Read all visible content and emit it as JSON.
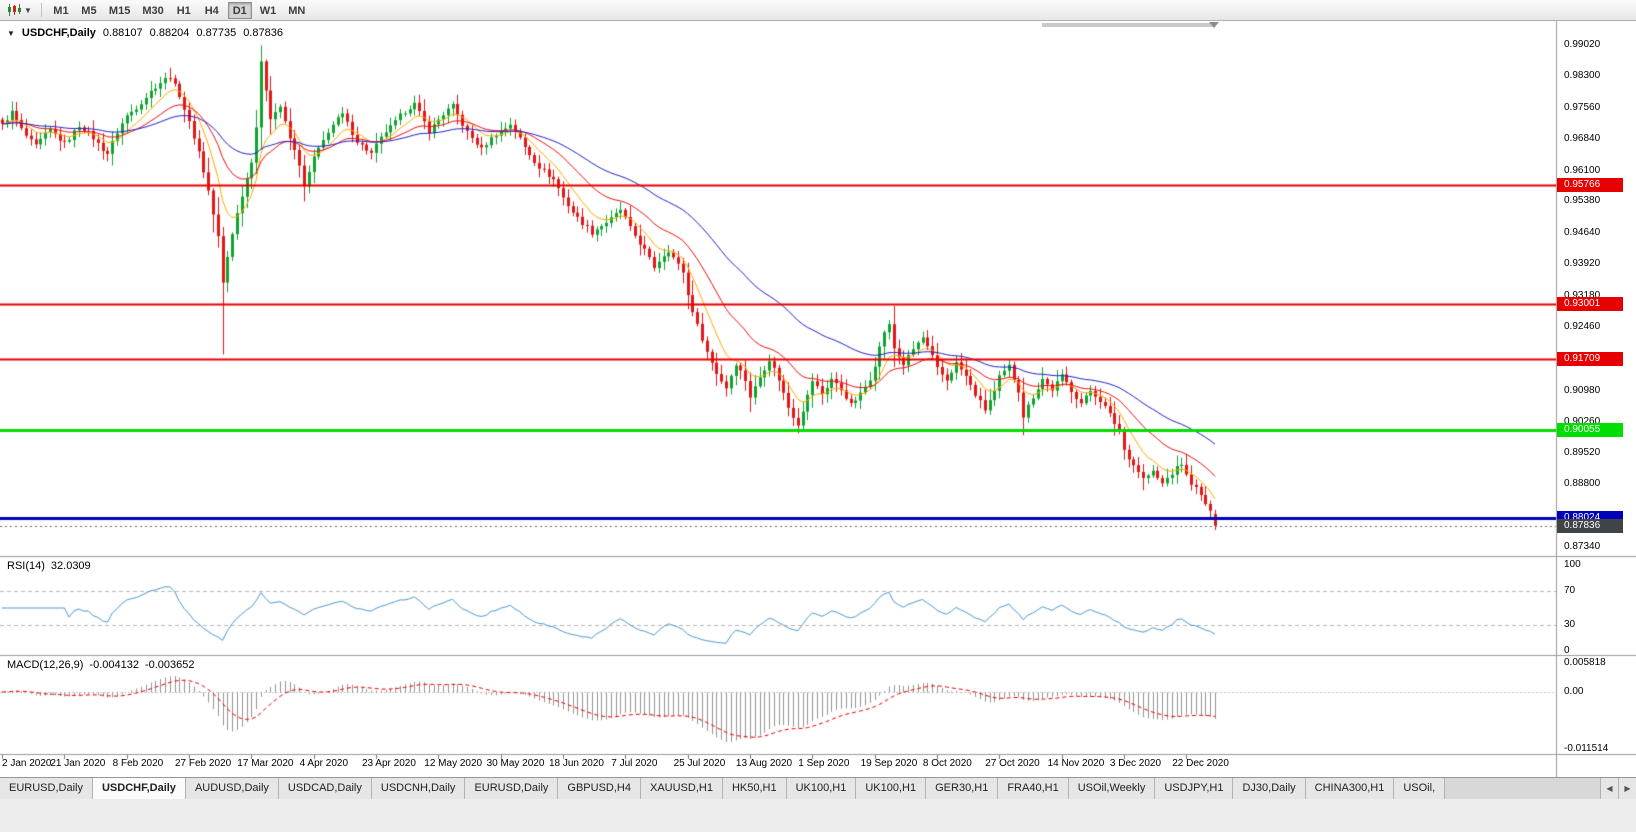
{
  "toolbar": {
    "chart_icon": "candlestick-chart-icon",
    "timeframes": [
      {
        "label": "M1",
        "active": false
      },
      {
        "label": "M5",
        "active": false
      },
      {
        "label": "M15",
        "active": false
      },
      {
        "label": "M30",
        "active": false
      },
      {
        "label": "H1",
        "active": false
      },
      {
        "label": "H4",
        "active": false
      },
      {
        "label": "D1",
        "active": true
      },
      {
        "label": "W1",
        "active": false
      },
      {
        "label": "MN",
        "active": false
      }
    ]
  },
  "chart_data": {
    "type": "candlestick",
    "title": "USDCHF,Daily",
    "ohlc": {
      "open": 0.88107,
      "high": 0.88204,
      "low": 0.87735,
      "close": 0.87836
    },
    "y_axis": {
      "min": 0.8734,
      "max": 0.9902,
      "ticks": [
        "0.99020",
        "0.98300",
        "0.97560",
        "0.96840",
        "0.96100",
        "0.95380",
        "0.94640",
        "0.93920",
        "0.93180",
        "0.92460",
        "0.91720",
        "0.90980",
        "0.90260",
        "0.89520",
        "0.88800",
        "0.88060",
        "0.87340"
      ]
    },
    "x_axis": {
      "total_days": 254,
      "days_per_label": 13,
      "labels": [
        "2 Jan 2020",
        "21 Jan 2020",
        "8 Feb 2020",
        "27 Feb 2020",
        "17 Mar 2020",
        "4 Apr 2020",
        "23 Apr 2020",
        "12 May 2020",
        "30 May 2020",
        "18 Jun 2020",
        "7 Jul 2020",
        "25 Jul 2020",
        "13 Aug 2020",
        "1 Sep 2020",
        "19 Sep 2020",
        "8 Oct 2020",
        "27 Oct 2020",
        "14 Nov 2020",
        "3 Dec 2020",
        "22 Dec 2020"
      ]
    },
    "price_path_anchors": [
      [
        0,
        0.9715
      ],
      [
        2,
        0.9742
      ],
      [
        4,
        0.9706
      ],
      [
        7,
        0.9668
      ],
      [
        10,
        0.9701
      ],
      [
        13,
        0.9676
      ],
      [
        16,
        0.9712
      ],
      [
        19,
        0.9686
      ],
      [
        22,
        0.9652
      ],
      [
        24,
        0.9696
      ],
      [
        26,
        0.9736
      ],
      [
        29,
        0.9772
      ],
      [
        32,
        0.9802
      ],
      [
        35,
        0.9832
      ],
      [
        37,
        0.9788
      ],
      [
        39,
        0.9718
      ],
      [
        41,
        0.9652
      ],
      [
        43,
        0.9566
      ],
      [
        45,
        0.9456
      ],
      [
        46,
        0.9346
      ],
      [
        47,
        0.9406
      ],
      [
        48,
        0.9462
      ],
      [
        50,
        0.9556
      ],
      [
        52,
        0.9636
      ],
      [
        53,
        0.9712
      ],
      [
        54,
        0.9856
      ],
      [
        55,
        0.9796
      ],
      [
        56,
        0.9732
      ],
      [
        58,
        0.9762
      ],
      [
        60,
        0.9686
      ],
      [
        62,
        0.9622
      ],
      [
        63,
        0.9566
      ],
      [
        65,
        0.9642
      ],
      [
        68,
        0.9702
      ],
      [
        71,
        0.9738
      ],
      [
        74,
        0.9682
      ],
      [
        77,
        0.9646
      ],
      [
        80,
        0.9702
      ],
      [
        83,
        0.9738
      ],
      [
        86,
        0.9762
      ],
      [
        89,
        0.9706
      ],
      [
        91,
        0.9728
      ],
      [
        94,
        0.9758
      ],
      [
        97,
        0.9702
      ],
      [
        100,
        0.9656
      ],
      [
        103,
        0.9698
      ],
      [
        106,
        0.9718
      ],
      [
        109,
        0.9662
      ],
      [
        112,
        0.9622
      ],
      [
        115,
        0.9586
      ],
      [
        117,
        0.9546
      ],
      [
        120,
        0.9502
      ],
      [
        123,
        0.9462
      ],
      [
        126,
        0.9492
      ],
      [
        129,
        0.9518
      ],
      [
        131,
        0.9472
      ],
      [
        134,
        0.9428
      ],
      [
        136,
        0.9386
      ],
      [
        139,
        0.9422
      ],
      [
        142,
        0.9378
      ],
      [
        143,
        0.9322
      ],
      [
        145,
        0.9246
      ],
      [
        147,
        0.9186
      ],
      [
        149,
        0.9142
      ],
      [
        151,
        0.9106
      ],
      [
        153,
        0.9158
      ],
      [
        155,
        0.9122
      ],
      [
        156,
        0.9086
      ],
      [
        158,
        0.9132
      ],
      [
        160,
        0.9168
      ],
      [
        162,
        0.9122
      ],
      [
        164,
        0.9062
      ],
      [
        166,
        0.9022
      ],
      [
        168,
        0.9082
      ],
      [
        169,
        0.9118
      ],
      [
        171,
        0.9092
      ],
      [
        173,
        0.9128
      ],
      [
        175,
        0.9098
      ],
      [
        177,
        0.9062
      ],
      [
        179,
        0.9092
      ],
      [
        181,
        0.9128
      ],
      [
        182,
        0.9158
      ],
      [
        184,
        0.9232
      ],
      [
        185,
        0.9248
      ],
      [
        186,
        0.9198
      ],
      [
        188,
        0.9162
      ],
      [
        190,
        0.9192
      ],
      [
        192,
        0.9218
      ],
      [
        194,
        0.9178
      ],
      [
        195,
        0.9152
      ],
      [
        197,
        0.9122
      ],
      [
        199,
        0.9158
      ],
      [
        201,
        0.9132
      ],
      [
        203,
        0.9092
      ],
      [
        205,
        0.9052
      ],
      [
        207,
        0.9092
      ],
      [
        208,
        0.9128
      ],
      [
        210,
        0.9158
      ],
      [
        212,
        0.9098
      ],
      [
        213,
        0.9036
      ],
      [
        215,
        0.9082
      ],
      [
        217,
        0.9128
      ],
      [
        219,
        0.9102
      ],
      [
        221,
        0.9128
      ],
      [
        223,
        0.9098
      ],
      [
        225,
        0.9072
      ],
      [
        227,
        0.9098
      ],
      [
        229,
        0.9072
      ],
      [
        231,
        0.9042
      ],
      [
        233,
        0.9008
      ],
      [
        234,
        0.8962
      ],
      [
        236,
        0.8922
      ],
      [
        238,
        0.8892
      ],
      [
        240,
        0.8912
      ],
      [
        242,
        0.8882
      ],
      [
        244,
        0.8902
      ],
      [
        246,
        0.8928
      ],
      [
        247,
        0.8902
      ],
      [
        249,
        0.8872
      ],
      [
        251,
        0.8832
      ],
      [
        252,
        0.881
      ],
      [
        253,
        0.87836
      ]
    ],
    "wick_extremes": [
      {
        "day": 35,
        "high": 0.9849
      },
      {
        "day": 46,
        "low": 0.9182
      },
      {
        "day": 54,
        "high": 0.9901
      },
      {
        "day": 166,
        "low": 0.8998
      },
      {
        "day": 185,
        "high": 0.9262
      },
      {
        "day": 213,
        "low": 0.8994
      },
      {
        "day": 238,
        "low": 0.8866
      }
    ],
    "candle_colors": {
      "bull": "#0fa32f",
      "bear": "#e51616"
    },
    "moving_averages": [
      {
        "name": "fast",
        "period": 8,
        "color": "#ffaa00"
      },
      {
        "name": "medium",
        "period": 20,
        "color": "#ee1111"
      },
      {
        "name": "slow",
        "period": 45,
        "color": "#2222cc"
      }
    ],
    "horizontal_lines": [
      {
        "price": 0.95766,
        "color": "#e60000",
        "width": 2
      },
      {
        "price": 0.93001,
        "color": "#e60000",
        "width": 2
      },
      {
        "price": 0.91709,
        "color": "#e60000",
        "width": 2
      },
      {
        "price": 0.90055,
        "color": "#00dd00",
        "width": 3
      },
      {
        "price": 0.88024,
        "color": "#0000bb",
        "width": 3
      }
    ],
    "current_price": {
      "value": 0.87836,
      "badge_color": "#3f4448",
      "line_color": "#707070"
    },
    "indicators": {
      "rsi": {
        "label": "RSI(14)",
        "value": 32.0309,
        "levels": [
          100,
          70,
          30,
          0
        ],
        "upper": 70,
        "lower": 30,
        "line_color": "#4e9ad2",
        "level_color": "#b8b8b8"
      },
      "macd": {
        "label": "MACD(12,26,9)",
        "macd_value": -0.004132,
        "signal_value": -0.003652,
        "axis_labels": [
          "0.005818",
          "0.00",
          "-0.011514"
        ],
        "axis_max": 0.005818,
        "axis_min": -0.011514,
        "histogram_color": "#949494",
        "signal_color": "#ee0000",
        "zero_color": "#c8c8c8"
      }
    }
  },
  "tabs": [
    {
      "label": "EURUSD,Daily",
      "active": false
    },
    {
      "label": "USDCHF,Daily",
      "active": true
    },
    {
      "label": "AUDUSD,Daily",
      "active": false
    },
    {
      "label": "USDCAD,Daily",
      "active": false
    },
    {
      "label": "USDCNH,Daily",
      "active": false
    },
    {
      "label": "EURUSD,Daily",
      "active": false
    },
    {
      "label": "GBPUSD,H4",
      "active": false
    },
    {
      "label": "XAUUSD,H1",
      "active": false
    },
    {
      "label": "HK50,H1",
      "active": false
    },
    {
      "label": "UK100,H1",
      "active": false
    },
    {
      "label": "UK100,H1",
      "active": false
    },
    {
      "label": "GER30,H1",
      "active": false
    },
    {
      "label": "FRA40,H1",
      "active": false
    },
    {
      "label": "USOil,Weekly",
      "active": false
    },
    {
      "label": "USDJPY,H1",
      "active": false
    },
    {
      "label": "DJ30,Daily",
      "active": false
    },
    {
      "label": "CHINA300,H1",
      "active": false
    },
    {
      "label": "USOil,",
      "active": false
    }
  ],
  "tab_arrows": {
    "left": "◀",
    "right": "▶"
  }
}
